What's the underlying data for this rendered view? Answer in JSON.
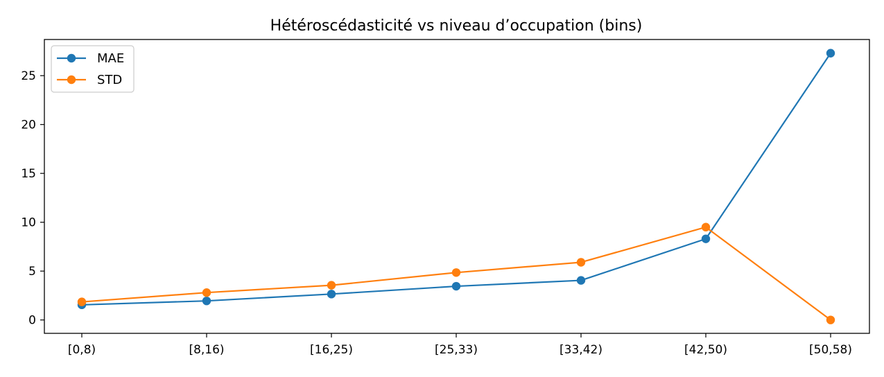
{
  "chart_data": {
    "type": "line",
    "title": "Hétéroscédasticité vs niveau d’occupation (bins)",
    "xlabel": "",
    "ylabel": "",
    "categories": [
      "[0,8)",
      "[8,16)",
      "[16,25)",
      "[25,33)",
      "[33,42)",
      "[42,50)",
      "[50,58)"
    ],
    "ylim": [
      -1.37,
      28.7
    ],
    "yticks": [
      0,
      5,
      10,
      15,
      20,
      25
    ],
    "grid": false,
    "legend_position": "top-left",
    "series": [
      {
        "name": "MAE",
        "color": "#1f77b4",
        "marker": "circle",
        "values": [
          1.55,
          1.95,
          2.65,
          3.45,
          4.05,
          8.3,
          27.3
        ]
      },
      {
        "name": "STD",
        "color": "#ff7f0e",
        "marker": "circle",
        "values": [
          1.85,
          2.8,
          3.55,
          4.85,
          5.9,
          9.5,
          0.0
        ]
      }
    ]
  }
}
